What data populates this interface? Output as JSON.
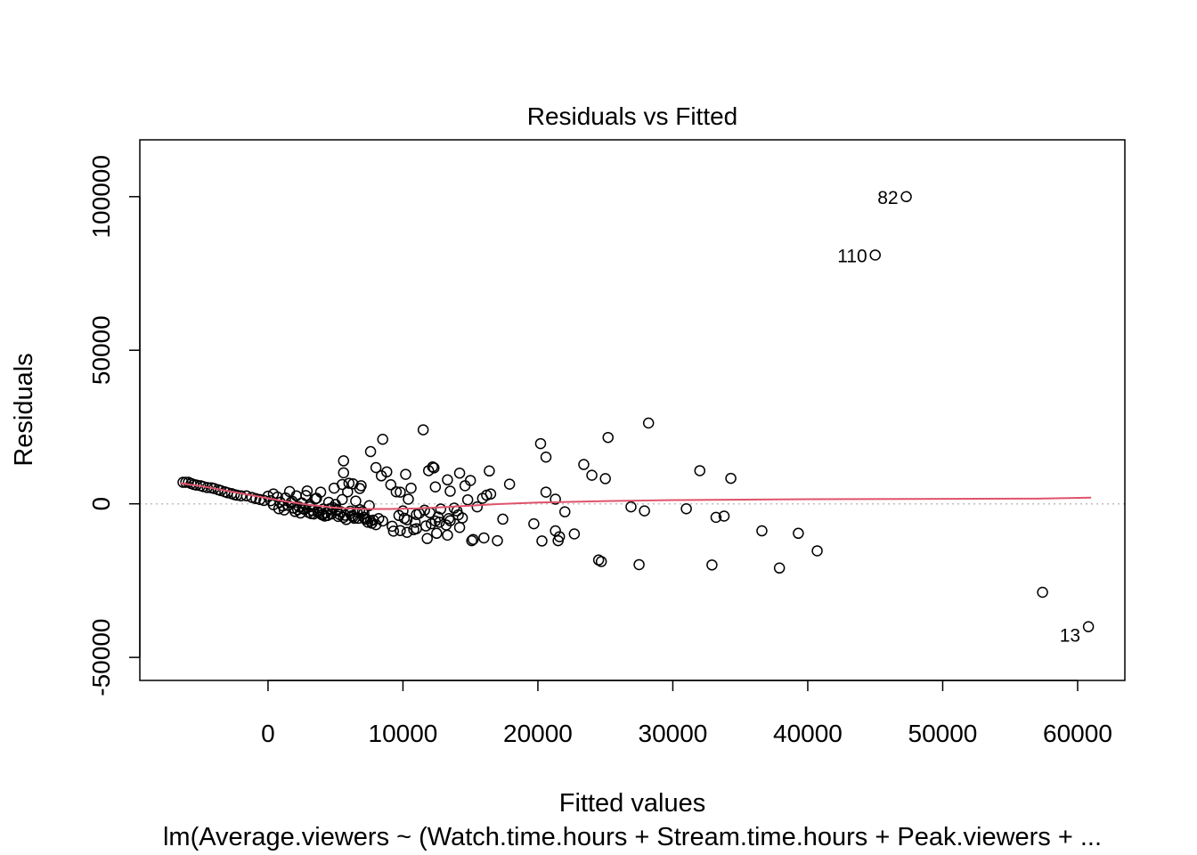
{
  "chart_data": {
    "type": "scatter",
    "title": "Residuals vs Fitted",
    "xlabel": "Fitted values",
    "ylabel": "Residuals",
    "subtitle": "lm(Average.viewers ~ (Watch.time.hours + Stream.time.hours + Peak.viewers + ...",
    "xlim": [
      -9500,
      63500
    ],
    "ylim": [
      -57500,
      118500
    ],
    "x_ticks": [
      0,
      10000,
      20000,
      30000,
      40000,
      50000,
      60000
    ],
    "x_tick_labels": [
      "0",
      "10000",
      "20000",
      "30000",
      "40000",
      "50000",
      "60000"
    ],
    "y_ticks": [
      -50000,
      0,
      50000,
      100000
    ],
    "y_tick_labels": [
      "-50000",
      "0",
      "50000",
      "100000"
    ],
    "reference_line": {
      "y": 0,
      "style": "dotted",
      "color": "#BEBEBE"
    },
    "smooth_color": "#DF536B",
    "point_color": "#000000",
    "labeled_points": [
      {
        "label": "82",
        "x": 47300,
        "y": 100000
      },
      {
        "label": "110",
        "x": 45000,
        "y": 81000
      },
      {
        "label": "13",
        "x": 60800,
        "y": -40000
      }
    ],
    "smoother": {
      "x": [
        -6500,
        -5000,
        -3000,
        -1000,
        1000,
        3000,
        5000,
        7000,
        9000,
        11000,
        13000,
        15000,
        17000,
        20000,
        25000,
        30000,
        40000,
        50000,
        57000,
        61000
      ],
      "y": [
        6700,
        5800,
        4200,
        2600,
        1000,
        -300,
        -1300,
        -1700,
        -1700,
        -1500,
        -1100,
        -600,
        -100,
        400,
        900,
        1200,
        1500,
        1600,
        1700,
        2000
      ]
    },
    "points": {
      "x": [
        -6300,
        -6100,
        -5900,
        -5700,
        -5500,
        -5300,
        -5000,
        -4800,
        -4500,
        -4200,
        -4000,
        -3700,
        -3500,
        -3200,
        -3000,
        -2700,
        -2500,
        -2300,
        -2000,
        -1600,
        -1200,
        -900,
        -600,
        -300,
        0,
        200,
        400,
        700,
        900,
        1100,
        1300,
        1500,
        1700,
        1900,
        2100,
        2300,
        2500,
        2700,
        2900,
        3100,
        3300,
        3500,
        3700,
        3900,
        4100,
        4300,
        4500,
        4700,
        4900,
        5100,
        5300,
        5500,
        5700,
        5900,
        6100,
        6300,
        6500,
        6700,
        6900,
        7100,
        7300,
        7500,
        7700,
        400,
        800,
        1200,
        1600,
        2000,
        2400,
        2800,
        3200,
        3600,
        4000,
        4400,
        4800,
        5200,
        5600,
        6000,
        6400,
        6800,
        7200,
        7600,
        8000,
        1800,
        2600,
        3400,
        4200,
        5000,
        5800,
        6600,
        7400,
        8200,
        2200,
        3000,
        3800,
        4600,
        5400,
        6200,
        7000,
        7800,
        3100,
        4100,
        5100,
        6100,
        7100,
        5600,
        5600,
        5500,
        6300,
        6800,
        7600,
        8000,
        8500,
        8400,
        8800,
        9100,
        9500,
        10000,
        10200,
        10600,
        11000,
        11500,
        11900,
        12200,
        12300,
        12400,
        12000,
        12700,
        13300,
        13500,
        13800,
        14200,
        14600,
        15000,
        9800,
        10400,
        11200,
        12100,
        12800,
        13400,
        14000,
        14800,
        15500,
        9200,
        9700,
        10300,
        10800,
        11600,
        12400,
        13200,
        14100,
        9800,
        10300,
        11000,
        11800,
        12500,
        13300,
        14200,
        15100,
        16000,
        8500,
        9300,
        10100,
        10900,
        11700,
        12600,
        13500,
        14400,
        15200,
        15900,
        16500,
        17000,
        17400,
        17900,
        16400,
        16200,
        20200,
        20600,
        20600,
        21300,
        21600,
        22000,
        21300,
        21500,
        20300,
        19700,
        22700,
        23400,
        24000,
        24500,
        24700,
        25000,
        25200,
        26900,
        27500,
        27900,
        28200,
        31000,
        32000,
        32900,
        33200,
        33800,
        34300,
        36600,
        37900,
        39300,
        40700,
        57400
      ],
      "y": [
        7000,
        7000,
        7000,
        6600,
        6300,
        6100,
        5900,
        5600,
        5300,
        5200,
        5000,
        4600,
        4300,
        3900,
        3600,
        3300,
        3000,
        2800,
        2600,
        2600,
        2100,
        1700,
        1400,
        1100,
        2500,
        1000,
        -300,
        2200,
        500,
        -700,
        1900,
        -500,
        400,
        -1400,
        2600,
        -1000,
        300,
        -1800,
        4200,
        -400,
        -2200,
        1600,
        -2600,
        3800,
        -1700,
        -2900,
        500,
        -3300,
        5100,
        -2200,
        -3500,
        1400,
        -3700,
        3900,
        -2400,
        -4200,
        900,
        -4700,
        5900,
        -3000,
        -5000,
        -600,
        -6300,
        3200,
        -1600,
        -2000,
        4000,
        -2500,
        -3000,
        2700,
        -3200,
        1800,
        -3600,
        -3800,
        -1200,
        -4100,
        -4400,
        6700,
        -4700,
        -1900,
        -5000,
        -5600,
        -6800,
        800,
        -1500,
        -3300,
        -4000,
        -200,
        -5100,
        -2700,
        -6000,
        -4800,
        -1900,
        -2800,
        -3000,
        -1600,
        -2600,
        -3900,
        -2500,
        -5300,
        -1000,
        -3400,
        -1800,
        -3100,
        -4400,
        14000,
        10100,
        6300,
        6500,
        5000,
        17000,
        11800,
        21000,
        9100,
        10400,
        6200,
        3900,
        -2300,
        9600,
        5100,
        -3500,
        24100,
        10800,
        12000,
        11700,
        5500,
        -2900,
        -6000,
        7800,
        4100,
        -1400,
        10000,
        5900,
        7600,
        3800,
        1500,
        -3100,
        -6500,
        -1700,
        -4800,
        -2300,
        1300,
        -1000,
        -7300,
        -3800,
        -5200,
        -8400,
        -2100,
        -5600,
        -6900,
        -3600,
        -8700,
        -9300,
        -8100,
        -11300,
        -9600,
        -10200,
        -7700,
        -12000,
        -11100,
        -5600,
        -8900,
        -4700,
        -6000,
        -7200,
        -4300,
        -5500,
        -4600,
        -11600,
        1800,
        3200,
        -12000,
        -5000,
        6400,
        10700,
        2800,
        19600,
        15200,
        3800,
        1500,
        -10700,
        -2600,
        -8800,
        -12000,
        -12100,
        -6500,
        -9800,
        12800,
        9300,
        -18300,
        -18800,
        8200,
        21600,
        -1000,
        -19800,
        -2300,
        26300,
        -1600,
        10800,
        -19900,
        -4400,
        -4000,
        8300,
        -8800,
        -20900,
        -9600,
        -15300,
        -28800
      ]
    }
  }
}
